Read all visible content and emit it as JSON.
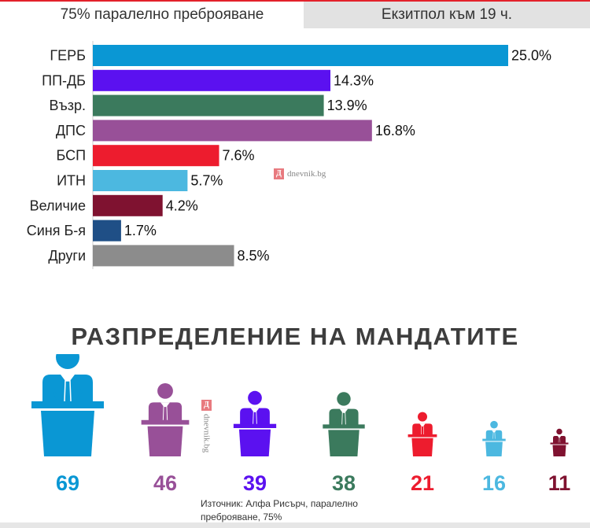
{
  "tabs": {
    "active": "75% паралелно преброяване",
    "inactive": "Екзитпол към 19 ч."
  },
  "watermark": "dnevnik.bg",
  "watermark_letter": "Д",
  "chart_data": {
    "type": "bar",
    "categories": [
      "ГЕРБ",
      "ПП-ДБ",
      "Възр.",
      "ДПС",
      "БСП",
      "ИТН",
      "Величие",
      "Синя Б-я",
      "Други"
    ],
    "values": [
      25.0,
      14.3,
      13.9,
      16.8,
      7.6,
      5.7,
      4.2,
      1.7,
      8.5
    ],
    "labels": [
      "25.0%",
      "14.3%",
      "13.9%",
      "16.8%",
      "7.6%",
      "5.7%",
      "4.2%",
      "1.7%",
      "8.5%"
    ],
    "colors": [
      "#0a97d4",
      "#5b11f0",
      "#3b7a5d",
      "#985098",
      "#ed1c2e",
      "#4cb8e0",
      "#7f1230",
      "#1f4f86",
      "#8c8c8c"
    ],
    "title": "",
    "xlabel": "",
    "ylabel": "",
    "xlim": [
      0,
      25
    ]
  },
  "seats": {
    "title": "РАЗПРЕДЕЛЕНИЕ НА МАНДАТИТЕ",
    "items": [
      {
        "value": "69",
        "color": "#0a97d4"
      },
      {
        "value": "46",
        "color": "#985098"
      },
      {
        "value": "39",
        "color": "#5b11f0"
      },
      {
        "value": "38",
        "color": "#3b7a5d"
      },
      {
        "value": "21",
        "color": "#ed1c2e"
      },
      {
        "value": "16",
        "color": "#4cb8e0"
      },
      {
        "value": "11",
        "color": "#7f1230"
      }
    ]
  },
  "source": "Източник: Алфа Рисърч, паралелно преброяване, 75%"
}
